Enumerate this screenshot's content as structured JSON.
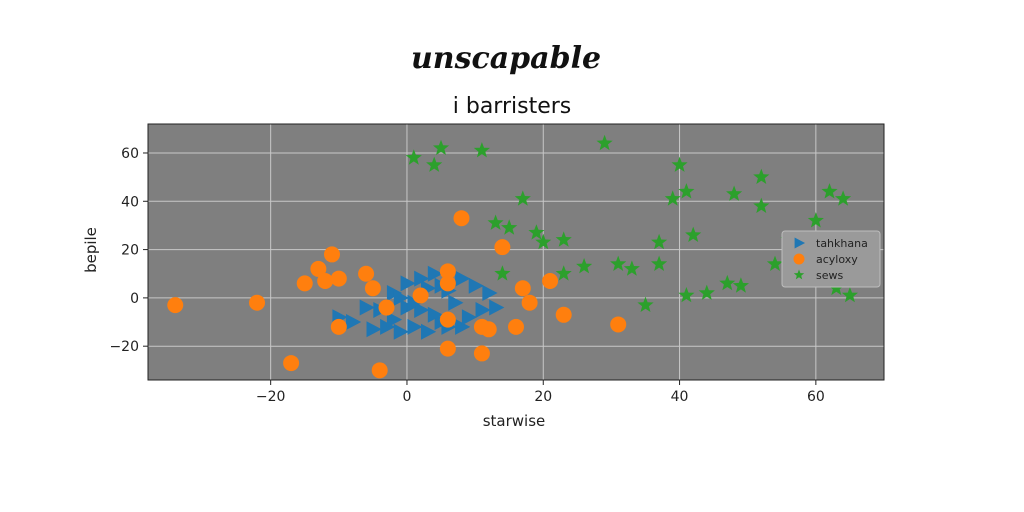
{
  "suptitle": "unscapable",
  "chart_data": {
    "type": "scatter",
    "title": "i barristers",
    "xlabel": "starwise",
    "ylabel": "bepile",
    "xlim": [
      -38,
      70
    ],
    "ylim": [
      -34,
      72
    ],
    "xticks": [
      -20,
      0,
      20,
      40,
      60
    ],
    "yticks": [
      -20,
      0,
      20,
      40,
      60
    ],
    "xtick_labels": [
      "−20",
      "0",
      "20",
      "40",
      "60"
    ],
    "ytick_labels": [
      "−20",
      "0",
      "20",
      "40",
      "60"
    ],
    "grid": true,
    "legend_position": "right",
    "series": [
      {
        "name": "tahkhana",
        "marker": "triangle-right",
        "color": "#1f77b4",
        "points": [
          [
            -10,
            -8
          ],
          [
            -8,
            -10
          ],
          [
            -5,
            -13
          ],
          [
            -3,
            -12
          ],
          [
            -1,
            -14
          ],
          [
            -2,
            -9
          ],
          [
            -4,
            -5
          ],
          [
            -6,
            -4
          ],
          [
            1,
            -12
          ],
          [
            3,
            -14
          ],
          [
            5,
            -10
          ],
          [
            6,
            -12
          ],
          [
            8,
            -12
          ],
          [
            4,
            -7
          ],
          [
            2,
            -5
          ],
          [
            0,
            -4
          ],
          [
            -2,
            2
          ],
          [
            0,
            6
          ],
          [
            2,
            8
          ],
          [
            4,
            10
          ],
          [
            3,
            4
          ],
          [
            6,
            3
          ],
          [
            8,
            8
          ],
          [
            10,
            5
          ],
          [
            12,
            2
          ],
          [
            11,
            -5
          ],
          [
            13,
            -4
          ],
          [
            9,
            -8
          ],
          [
            7,
            -2
          ],
          [
            -1,
            0
          ],
          [
            1,
            -2
          ],
          [
            5,
            5
          ]
        ]
      },
      {
        "name": "acyloxy",
        "marker": "circle",
        "color": "#ff7f0e",
        "points": [
          [
            -34,
            -3
          ],
          [
            -22,
            -2
          ],
          [
            -17,
            -27
          ],
          [
            -15,
            6
          ],
          [
            -13,
            12
          ],
          [
            -12,
            7
          ],
          [
            -11,
            18
          ],
          [
            -10,
            8
          ],
          [
            -10,
            -12
          ],
          [
            -6,
            10
          ],
          [
            -5,
            4
          ],
          [
            -3,
            -4
          ],
          [
            -4,
            -30
          ],
          [
            2,
            1
          ],
          [
            6,
            11
          ],
          [
            6,
            6
          ],
          [
            6,
            -9
          ],
          [
            6,
            -21
          ],
          [
            8,
            33
          ],
          [
            11,
            -12
          ],
          [
            11,
            -23
          ],
          [
            12,
            -13
          ],
          [
            14,
            21
          ],
          [
            16,
            -12
          ],
          [
            17,
            4
          ],
          [
            18,
            -2
          ],
          [
            21,
            7
          ],
          [
            23,
            -7
          ],
          [
            31,
            -11
          ]
        ]
      },
      {
        "name": "sews",
        "marker": "star",
        "color": "#2ca02c",
        "points": [
          [
            1,
            58
          ],
          [
            4,
            55
          ],
          [
            5,
            62
          ],
          [
            11,
            61
          ],
          [
            13,
            31
          ],
          [
            14,
            10
          ],
          [
            15,
            29
          ],
          [
            17,
            41
          ],
          [
            19,
            27
          ],
          [
            20,
            23
          ],
          [
            23,
            10
          ],
          [
            23,
            24
          ],
          [
            26,
            13
          ],
          [
            29,
            64
          ],
          [
            31,
            14
          ],
          [
            33,
            12
          ],
          [
            35,
            -3
          ],
          [
            37,
            23
          ],
          [
            37,
            14
          ],
          [
            39,
            41
          ],
          [
            40,
            55
          ],
          [
            41,
            44
          ],
          [
            41,
            1
          ],
          [
            42,
            26
          ],
          [
            44,
            2
          ],
          [
            47,
            6
          ],
          [
            48,
            43
          ],
          [
            49,
            5
          ],
          [
            52,
            38
          ],
          [
            52,
            50
          ],
          [
            54,
            14
          ],
          [
            56,
            24
          ],
          [
            60,
            32
          ],
          [
            62,
            44
          ],
          [
            63,
            4
          ],
          [
            64,
            41
          ],
          [
            65,
            1
          ]
        ]
      }
    ]
  }
}
